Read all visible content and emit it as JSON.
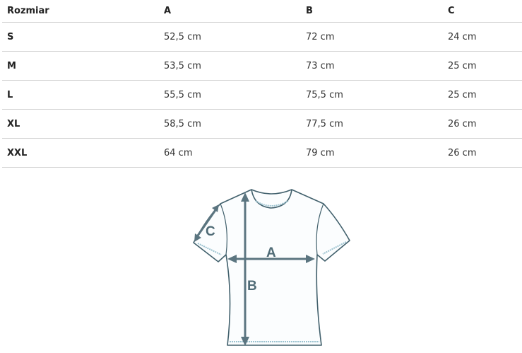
{
  "table": {
    "headers": [
      "Rozmiar",
      "A",
      "B",
      "C"
    ],
    "rows": [
      [
        "S",
        "52,5 cm",
        "72 cm",
        "24 cm"
      ],
      [
        "M",
        "53,5 cm",
        "73 cm",
        "25 cm"
      ],
      [
        "L",
        "55,5 cm",
        "75,5 cm",
        "25 cm"
      ],
      [
        "XL",
        "58,5 cm",
        "77,5 cm",
        "26 cm"
      ],
      [
        "XXL",
        "64 cm",
        "79 cm",
        "26 cm"
      ]
    ]
  },
  "diagram": {
    "label_a": "A",
    "label_b": "B",
    "label_c": "C",
    "stroke_color": "#41606c"
  }
}
